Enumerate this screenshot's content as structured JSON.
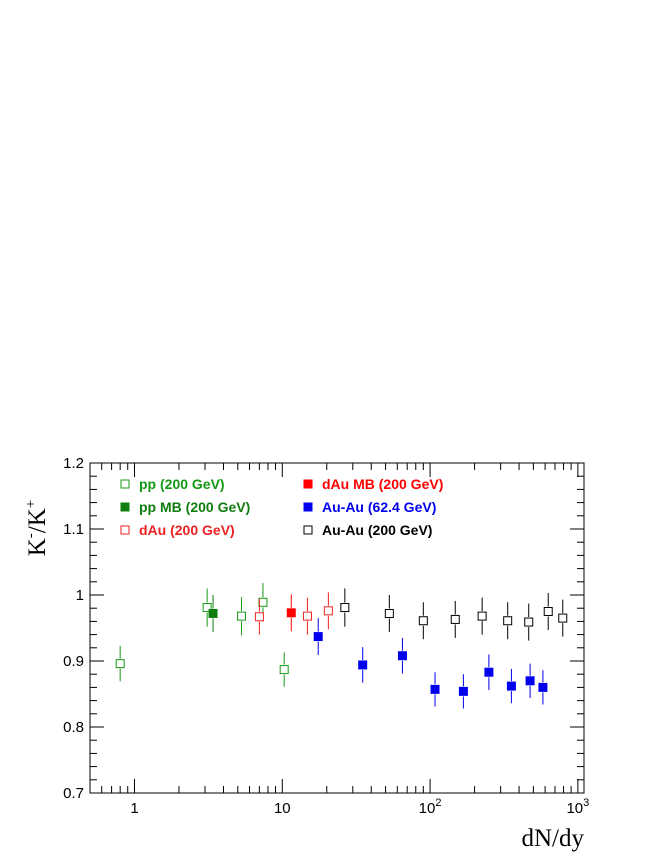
{
  "chart_data": {
    "type": "scatter",
    "title": "",
    "xlabel": "dN/dy",
    "ylabel": {
      "base": "K",
      "sup1": "-",
      "slash": "/K",
      "sup2": "+"
    },
    "xscale": "log",
    "xlim": [
      0.5,
      1100
    ],
    "ylim": [
      0.7,
      1.2
    ],
    "grid": false,
    "legend_position": "top-left",
    "y_ticks": [
      {
        "value": 0.7,
        "label": "0.7"
      },
      {
        "value": 0.8,
        "label": "0.8"
      },
      {
        "value": 0.9,
        "label": "0.9"
      },
      {
        "value": 1.0,
        "label": "1"
      },
      {
        "value": 1.1,
        "label": "1.1"
      },
      {
        "value": 1.2,
        "label": "1.2"
      }
    ],
    "x_ticks": [
      {
        "value": 1,
        "base": "1",
        "exp": ""
      },
      {
        "value": 10,
        "base": "10",
        "exp": ""
      },
      {
        "value": 100,
        "base": "10",
        "exp": "2"
      },
      {
        "value": 1000,
        "base": "10",
        "exp": "3"
      }
    ],
    "series": [
      {
        "name": "pp (200 GeV)",
        "color": "#159915",
        "marker": "open-square",
        "points": [
          {
            "x": 0.8,
            "y": 0.896,
            "err": 0.027
          },
          {
            "x": 3.1,
            "y": 0.981,
            "err": 0.029
          },
          {
            "x": 5.3,
            "y": 0.968,
            "err": 0.029
          },
          {
            "x": 7.4,
            "y": 0.989,
            "err": 0.029
          },
          {
            "x": 10.3,
            "y": 0.887,
            "err": 0.026
          }
        ]
      },
      {
        "name": "pp MB (200 GeV)",
        "color": "#0f7d0f",
        "marker": "filled-square",
        "points": [
          {
            "x": 3.4,
            "y": 0.972,
            "err": 0.028
          }
        ]
      },
      {
        "name": "dAu (200 GeV)",
        "color": "#ee2222",
        "marker": "open-square",
        "points": [
          {
            "x": 7.0,
            "y": 0.967,
            "err": 0.027
          },
          {
            "x": 14.8,
            "y": 0.968,
            "err": 0.028
          },
          {
            "x": 20.5,
            "y": 0.976,
            "err": 0.028
          }
        ]
      },
      {
        "name": "dAu MB (200 GeV)",
        "color": "#ff0000",
        "marker": "filled-square",
        "points": [
          {
            "x": 11.5,
            "y": 0.973,
            "err": 0.028
          }
        ]
      },
      {
        "name": "Au-Au (62.4 GeV)",
        "color": "#0000ee",
        "marker": "filled-square",
        "points": [
          {
            "x": 17.5,
            "y": 0.937,
            "err": 0.028
          },
          {
            "x": 35,
            "y": 0.894,
            "err": 0.027
          },
          {
            "x": 65,
            "y": 0.908,
            "err": 0.027
          },
          {
            "x": 108,
            "y": 0.857,
            "err": 0.026
          },
          {
            "x": 168,
            "y": 0.854,
            "err": 0.026
          },
          {
            "x": 250,
            "y": 0.883,
            "err": 0.027
          },
          {
            "x": 355,
            "y": 0.862,
            "err": 0.026
          },
          {
            "x": 475,
            "y": 0.87,
            "err": 0.026
          },
          {
            "x": 580,
            "y": 0.86,
            "err": 0.026
          }
        ]
      },
      {
        "name": "Au-Au (200 GeV)",
        "color": "#000000",
        "marker": "open-square",
        "points": [
          {
            "x": 26.5,
            "y": 0.981,
            "err": 0.029
          },
          {
            "x": 53,
            "y": 0.972,
            "err": 0.028
          },
          {
            "x": 90,
            "y": 0.961,
            "err": 0.028
          },
          {
            "x": 148,
            "y": 0.963,
            "err": 0.028
          },
          {
            "x": 225,
            "y": 0.968,
            "err": 0.028
          },
          {
            "x": 335,
            "y": 0.961,
            "err": 0.028
          },
          {
            "x": 465,
            "y": 0.959,
            "err": 0.028
          },
          {
            "x": 630,
            "y": 0.975,
            "err": 0.028
          },
          {
            "x": 790,
            "y": 0.965,
            "err": 0.028
          }
        ]
      }
    ],
    "legend_layout": [
      {
        "series": 0,
        "column": 0,
        "row": 0
      },
      {
        "series": 1,
        "column": 0,
        "row": 1
      },
      {
        "series": 2,
        "column": 0,
        "row": 2
      },
      {
        "series": 3,
        "column": 1,
        "row": 0
      },
      {
        "series": 4,
        "column": 1,
        "row": 1
      },
      {
        "series": 5,
        "column": 1,
        "row": 2
      }
    ]
  }
}
